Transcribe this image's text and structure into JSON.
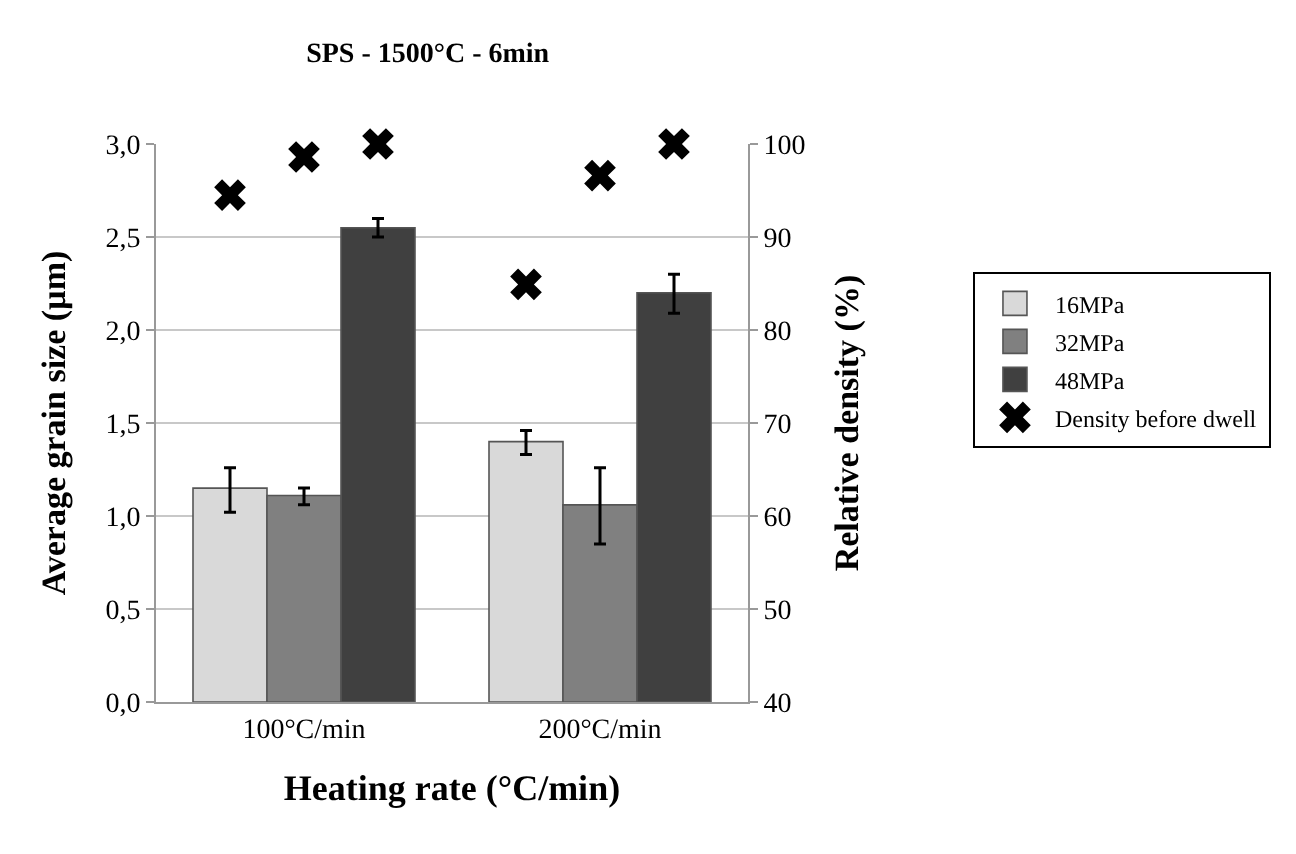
{
  "chart_data": {
    "type": "bar",
    "title": "SPS - 1500°C - 6min",
    "xlabel": "Heating rate (°C/min)",
    "ylabel": "Average grain size (µm)",
    "y2label": "Relative density (%)",
    "categories": [
      "100°C/min",
      "200°C/min"
    ],
    "series": [
      {
        "name": "16MPa",
        "color": "#d9d9d9",
        "values": [
          1.15,
          1.4
        ],
        "errors": [
          [
            1.02,
            1.26
          ],
          [
            1.33,
            1.46
          ]
        ]
      },
      {
        "name": "32MPa",
        "color": "#808080",
        "values": [
          1.11,
          1.06
        ],
        "errors": [
          [
            1.06,
            1.15
          ],
          [
            0.85,
            1.26
          ]
        ]
      },
      {
        "name": "48MPa",
        "color": "#404040",
        "values": [
          2.55,
          2.2
        ],
        "errors": [
          [
            2.5,
            2.6
          ],
          [
            2.09,
            2.3
          ]
        ]
      },
      {
        "name": "Density before dwell",
        "type": "scatter",
        "axis": "y2",
        "marker": "cross",
        "color": "#000000",
        "values": [
          94.5,
          84.9
        ]
      },
      {
        "type": "scatter",
        "axis": "y2",
        "marker": "cross",
        "color": "#000000",
        "values": [
          98.6,
          96.6
        ]
      },
      {
        "type": "scatter",
        "axis": "y2",
        "marker": "cross",
        "color": "#000000",
        "values": [
          100,
          100
        ]
      }
    ],
    "ylim": [
      0,
      3
    ],
    "yticks": [
      {
        "value": 0,
        "label": "0,0"
      },
      {
        "value": 0.5,
        "label": "0,5"
      },
      {
        "value": 1,
        "label": "1,0"
      },
      {
        "value": 1.5,
        "label": "1,5"
      },
      {
        "value": 2,
        "label": "2,0"
      },
      {
        "value": 2.5,
        "label": "2,5"
      },
      {
        "value": 3,
        "label": "3,0"
      }
    ],
    "y2lim": [
      40,
      100
    ],
    "y2ticks": [
      40,
      50,
      60,
      70,
      80,
      90,
      100
    ],
    "grid": "y",
    "legend": "right"
  }
}
